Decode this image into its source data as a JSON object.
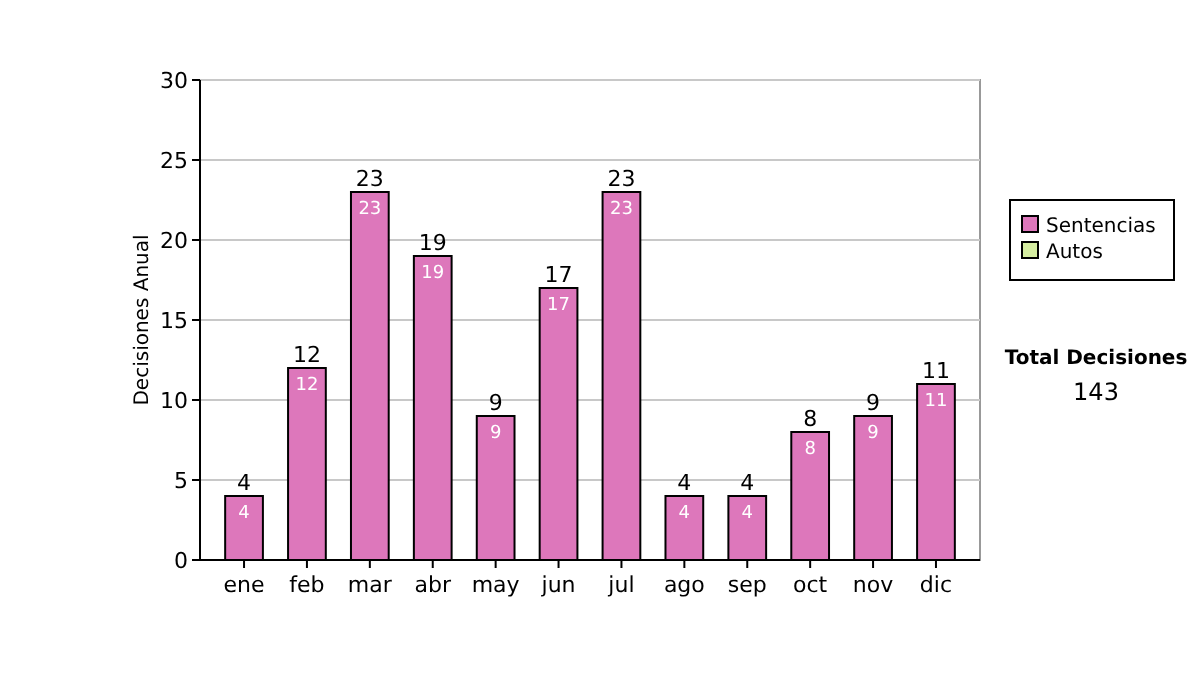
{
  "chart_data": {
    "type": "bar",
    "stacked": true,
    "ylabel": "Decisiones Anual",
    "categories": [
      "ene",
      "feb",
      "mar",
      "abr",
      "may",
      "jun",
      "jul",
      "ago",
      "sep",
      "oct",
      "nov",
      "dic"
    ],
    "series": [
      {
        "name": "Sentencias",
        "color": "#dd77bb",
        "values": [
          4,
          12,
          23,
          19,
          9,
          17,
          23,
          4,
          4,
          8,
          9,
          11
        ],
        "value_labels": [
          "4",
          "12",
          "23",
          "19",
          "9",
          "17",
          "23",
          "4",
          "4",
          "8",
          "9",
          "11"
        ]
      },
      {
        "name": "Autos",
        "color": "#d4eca0",
        "values": [
          0,
          0,
          0,
          0,
          0,
          0,
          0,
          0,
          0,
          0,
          0,
          0
        ]
      }
    ],
    "totals": [
      "4",
      "12",
      "23",
      "19",
      "9",
      "17",
      "23",
      "4",
      "4",
      "8",
      "9",
      "11"
    ],
    "ylim": [
      0,
      30
    ],
    "yticks": [
      0,
      5,
      10,
      15,
      20,
      25,
      30
    ],
    "grid": "y",
    "legend": "right",
    "annotations": [
      "Total Decisiones",
      "143"
    ]
  }
}
